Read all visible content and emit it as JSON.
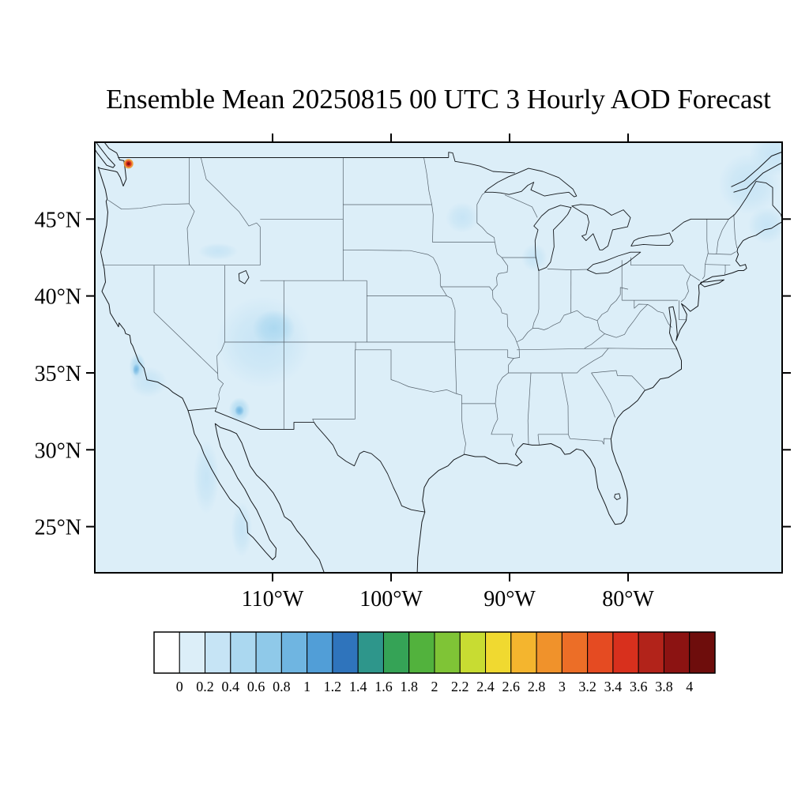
{
  "title": "Ensemble Mean 20250815 00 UTC 3 Hourly AOD Forecast",
  "map": {
    "extent": {
      "lon_min": -125,
      "lon_max": -67,
      "lat_min": 22,
      "lat_max": 50
    },
    "lat_ticks": [
      {
        "lat": 45,
        "label": "45°N"
      },
      {
        "lat": 40,
        "label": "40°N"
      },
      {
        "lat": 35,
        "label": "35°N"
      },
      {
        "lat": 30,
        "label": "30°N"
      },
      {
        "lat": 25,
        "label": "25°N"
      }
    ],
    "lon_ticks": [
      {
        "lon": -110,
        "label": "110°W"
      },
      {
        "lon": -100,
        "label": "100°W"
      },
      {
        "lon": -90,
        "label": "90°W"
      },
      {
        "lon": -80,
        "label": "80°W"
      }
    ],
    "base_color": "#DCEEF8"
  },
  "colorbar": {
    "tick_labels": [
      "0",
      "0.2",
      "0.4",
      "0.6",
      "0.8",
      "1",
      "1.2",
      "1.4",
      "1.6",
      "1.8",
      "2",
      "2.2",
      "2.4",
      "2.6",
      "2.8",
      "3",
      "3.2",
      "3.4",
      "3.6",
      "3.8",
      "4"
    ],
    "colors": [
      "#FFFFFF",
      "#DCEEF8",
      "#C6E4F5",
      "#ABD8F0",
      "#8FC9E9",
      "#6FB5E1",
      "#519ED7",
      "#2F74BC",
      "#2E968B",
      "#35A356",
      "#52B23D",
      "#7FC436",
      "#C8DC32",
      "#F0D930",
      "#F4B52E",
      "#F0922B",
      "#EC6E27",
      "#E54B22",
      "#D8301D",
      "#B2231A",
      "#8C1312",
      "#6E0D0C"
    ]
  },
  "chart_data": {
    "type": "heatmap",
    "title": "Ensemble Mean 20250815 00 UTC 3 Hourly AOD Forecast",
    "variable": "Aerosol Optical Depth (AOD)",
    "region": "Continental United States",
    "projection": "cylindrical equidistant lat-lon",
    "x_axis": {
      "label": "",
      "tick_labels": [
        "110°W",
        "100°W",
        "90°W",
        "80°W"
      ],
      "lon_range": [
        -125,
        -67
      ]
    },
    "y_axis": {
      "label": "",
      "tick_labels": [
        "45°N",
        "40°N",
        "35°N",
        "30°N",
        "25°N"
      ],
      "lat_range": [
        22,
        50
      ]
    },
    "colorbar_levels": [
      0,
      0.2,
      0.4,
      0.6,
      0.8,
      1,
      1.2,
      1.4,
      1.6,
      1.8,
      2,
      2.2,
      2.4,
      2.6,
      2.8,
      3,
      3.2,
      3.4,
      3.6,
      3.8,
      4
    ],
    "legend_position": "bottom",
    "grid": false,
    "background_aod_range": [
      0,
      0.2
    ],
    "features": [
      {
        "name": "pacific-northwest-fire-hotspot",
        "lon": -122.15,
        "lat": 48.6,
        "aod": 3.3,
        "rx_deg": 0.3,
        "ry_deg": 0.25,
        "style": "hotspot"
      },
      {
        "name": "great-basin-four-corners-plume",
        "lon": -110.8,
        "lat": 37.0,
        "aod": 0.35,
        "rx_deg": 4.0,
        "ry_deg": 3.0
      },
      {
        "name": "four-corners-plume-core",
        "lon": -109.9,
        "lat": 37.9,
        "aod": 0.5,
        "rx_deg": 1.8,
        "ry_deg": 1.2
      },
      {
        "name": "southern-arizona-spot",
        "lon": -112.8,
        "lat": 32.6,
        "aod": 0.6,
        "rx_deg": 0.9,
        "ry_deg": 0.8
      },
      {
        "name": "southern-arizona-spot-core",
        "lon": -112.8,
        "lat": 32.55,
        "aod": 0.9,
        "rx_deg": 0.4,
        "ry_deg": 0.35
      },
      {
        "name": "central-california-coast-spot",
        "lon": -121.4,
        "lat": 35.4,
        "aod": 0.6,
        "rx_deg": 0.7,
        "ry_deg": 0.9
      },
      {
        "name": "central-california-coast-core",
        "lon": -121.5,
        "lat": 35.2,
        "aod": 0.85,
        "rx_deg": 0.3,
        "ry_deg": 0.4
      },
      {
        "name": "socal-coast-veil",
        "lon": -120.5,
        "lat": 34.4,
        "aod": 0.3,
        "rx_deg": 1.6,
        "ry_deg": 1.0
      },
      {
        "name": "southern-idaho-streak",
        "lon": -114.6,
        "lat": 42.9,
        "aod": 0.3,
        "rx_deg": 1.7,
        "ry_deg": 0.55
      },
      {
        "name": "minnesota-veil",
        "lon": -94.0,
        "lat": 45.1,
        "aod": 0.25,
        "rx_deg": 1.4,
        "ry_deg": 1.0
      },
      {
        "name": "lake-michigan-veil",
        "lon": -87.9,
        "lat": 42.5,
        "aod": 0.25,
        "rx_deg": 1.1,
        "ry_deg": 0.9
      },
      {
        "name": "new-england-veil",
        "lon": -69.8,
        "lat": 47.3,
        "aod": 0.3,
        "rx_deg": 2.6,
        "ry_deg": 2.0
      },
      {
        "name": "maritimes-corner-veil",
        "lon": -67.6,
        "lat": 49.2,
        "aod": 0.35,
        "rx_deg": 2.2,
        "ry_deg": 1.4
      },
      {
        "name": "gulf-of-maine-veil",
        "lon": -68.3,
        "lat": 44.6,
        "aod": 0.25,
        "rx_deg": 1.6,
        "ry_deg": 1.2
      },
      {
        "name": "baja-pacific-veil",
        "lon": -115.6,
        "lat": 28.2,
        "aod": 0.25,
        "rx_deg": 1.1,
        "ry_deg": 2.4
      },
      {
        "name": "baja-south-veil",
        "lon": -112.6,
        "lat": 24.8,
        "aod": 0.22,
        "rx_deg": 0.9,
        "ry_deg": 1.8
      }
    ]
  }
}
